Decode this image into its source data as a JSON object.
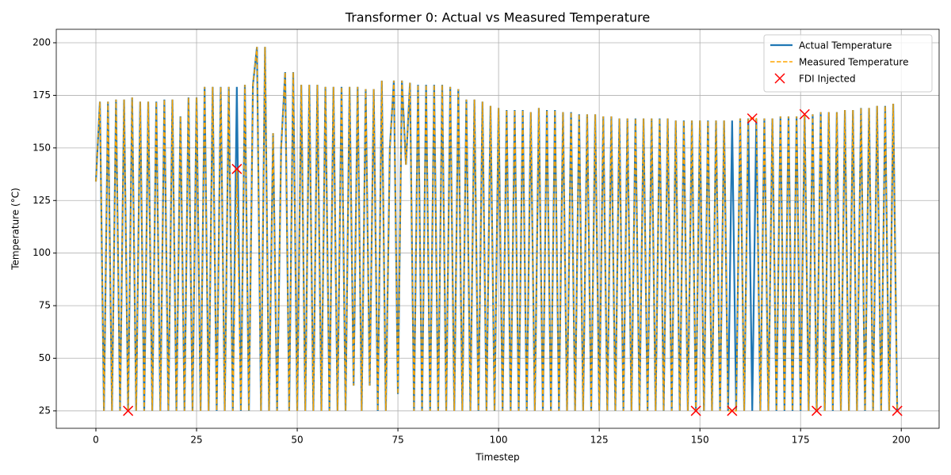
{
  "chart_data": {
    "type": "line",
    "title": "Transformer 0: Actual vs Measured Temperature",
    "x_label": "Timestep",
    "y_label": "Temperature (°C)",
    "xlim": [
      -9.84,
      209.4
    ],
    "ylim": [
      16.7,
      206.4
    ],
    "xticks": [
      0,
      25,
      50,
      75,
      100,
      125,
      150,
      175,
      200
    ],
    "yticks": [
      25,
      50,
      75,
      100,
      125,
      150,
      175,
      200
    ],
    "grid": true,
    "legend": "upper right",
    "x": [
      0,
      1,
      2,
      3,
      4,
      5,
      6,
      7,
      8,
      9,
      10,
      11,
      12,
      13,
      14,
      15,
      16,
      17,
      18,
      19,
      20,
      21,
      22,
      23,
      24,
      25,
      26,
      27,
      28,
      29,
      30,
      31,
      32,
      33,
      34,
      35,
      36,
      37,
      38,
      39,
      40,
      41,
      42,
      43,
      44,
      45,
      46,
      47,
      48,
      49,
      50,
      51,
      52,
      53,
      54,
      55,
      56,
      57,
      58,
      59,
      60,
      61,
      62,
      63,
      64,
      65,
      66,
      67,
      68,
      69,
      70,
      71,
      72,
      73,
      74,
      75,
      76,
      77,
      78,
      79,
      80,
      81,
      82,
      83,
      84,
      85,
      86,
      87,
      88,
      89,
      90,
      91,
      92,
      93,
      94,
      95,
      96,
      97,
      98,
      99,
      100,
      101,
      102,
      103,
      104,
      105,
      106,
      107,
      108,
      109,
      110,
      111,
      112,
      113,
      114,
      115,
      116,
      117,
      118,
      119,
      120,
      121,
      122,
      123,
      124,
      125,
      126,
      127,
      128,
      129,
      130,
      131,
      132,
      133,
      134,
      135,
      136,
      137,
      138,
      139,
      140,
      141,
      142,
      143,
      144,
      145,
      146,
      147,
      148,
      149,
      150,
      151,
      152,
      153,
      154,
      155,
      156,
      157,
      158,
      159,
      160,
      161,
      162,
      163,
      164,
      165,
      166,
      167,
      168,
      169,
      170,
      171,
      172,
      173,
      174,
      175,
      176,
      177,
      178,
      179,
      180,
      181,
      182,
      183,
      184,
      185,
      186,
      187,
      188,
      189,
      190,
      191,
      192,
      193,
      194,
      195,
      196,
      197,
      198,
      199
    ],
    "series": [
      {
        "name": "Actual Temperature",
        "color": "#1f77b4",
        "style": "solid",
        "values": [
          134,
          172,
          25,
          172,
          25,
          173,
          25,
          173,
          25,
          174,
          25,
          172,
          25,
          172,
          25,
          172,
          25,
          173,
          25,
          173,
          25,
          165,
          25,
          174,
          25,
          174,
          25,
          179,
          25,
          179,
          25,
          179,
          25,
          179,
          25,
          179,
          25,
          180,
          25,
          180,
          198,
          25,
          198,
          25,
          157,
          25,
          150,
          186,
          25,
          186,
          25,
          180,
          25,
          180,
          25,
          180,
          25,
          179,
          25,
          179,
          25,
          179,
          25,
          179,
          37,
          179,
          25,
          178,
          37,
          178,
          25,
          182,
          25,
          150,
          182,
          33,
          182,
          142,
          181,
          25,
          180,
          25,
          180,
          25,
          180,
          25,
          180,
          25,
          179,
          25,
          178,
          25,
          173,
          25,
          173,
          25,
          172,
          25,
          170,
          25,
          169,
          25,
          168,
          25,
          168,
          25,
          168,
          25,
          167,
          25,
          169,
          25,
          168,
          25,
          168,
          25,
          167,
          25,
          167,
          25,
          166,
          25,
          166,
          25,
          166,
          25,
          165,
          25,
          165,
          25,
          164,
          25,
          164,
          25,
          164,
          25,
          164,
          25,
          164,
          25,
          164,
          25,
          164,
          25,
          163,
          25,
          163,
          25,
          163,
          25,
          163,
          25,
          163,
          25,
          163,
          25,
          163,
          25,
          163,
          25,
          164,
          25,
          164,
          25,
          164,
          25,
          164,
          25,
          164,
          25,
          165,
          25,
          165,
          25,
          165,
          25,
          166,
          25,
          166,
          25,
          167,
          25,
          167,
          25,
          167,
          25,
          168,
          25,
          168,
          25,
          169,
          25,
          169,
          25,
          170,
          25,
          170,
          25,
          171,
          25
        ]
      },
      {
        "name": "Measured Temperature",
        "color": "#ffa500",
        "style": "dashed",
        "values": [
          134,
          172,
          25,
          172,
          25,
          173,
          25,
          173,
          25,
          174,
          25,
          172,
          25,
          172,
          25,
          172,
          25,
          173,
          25,
          173,
          25,
          165,
          25,
          174,
          25,
          174,
          25,
          179,
          25,
          179,
          25,
          179,
          25,
          179,
          25,
          140,
          25,
          180,
          25,
          180,
          198,
          25,
          198,
          25,
          157,
          25,
          150,
          186,
          25,
          186,
          25,
          180,
          25,
          180,
          25,
          180,
          25,
          179,
          25,
          179,
          25,
          179,
          25,
          179,
          37,
          179,
          25,
          178,
          37,
          178,
          25,
          182,
          25,
          150,
          182,
          33,
          182,
          142,
          181,
          25,
          180,
          25,
          180,
          25,
          180,
          25,
          180,
          25,
          179,
          25,
          178,
          25,
          173,
          25,
          173,
          25,
          172,
          25,
          170,
          25,
          169,
          25,
          168,
          25,
          168,
          25,
          168,
          25,
          167,
          25,
          169,
          25,
          168,
          25,
          168,
          25,
          167,
          25,
          167,
          25,
          166,
          25,
          166,
          25,
          166,
          25,
          165,
          25,
          165,
          25,
          164,
          25,
          164,
          25,
          164,
          25,
          164,
          25,
          164,
          25,
          164,
          25,
          164,
          25,
          163,
          25,
          163,
          25,
          163,
          25,
          163,
          25,
          163,
          25,
          163,
          25,
          163,
          25,
          25,
          25,
          164,
          25,
          164,
          164,
          164,
          25,
          164,
          25,
          164,
          25,
          165,
          25,
          165,
          25,
          165,
          25,
          166,
          25,
          166,
          25,
          167,
          25,
          167,
          25,
          167,
          25,
          168,
          25,
          168,
          25,
          169,
          25,
          169,
          25,
          170,
          25,
          170,
          25,
          171,
          25
        ]
      },
      {
        "name": "FDI Injected",
        "color": "#ff0000",
        "style": "marker",
        "x": [
          8,
          35,
          149,
          158,
          163,
          176,
          179,
          199
        ],
        "values": [
          25,
          140,
          25,
          25,
          164,
          166,
          25,
          25
        ]
      }
    ]
  }
}
